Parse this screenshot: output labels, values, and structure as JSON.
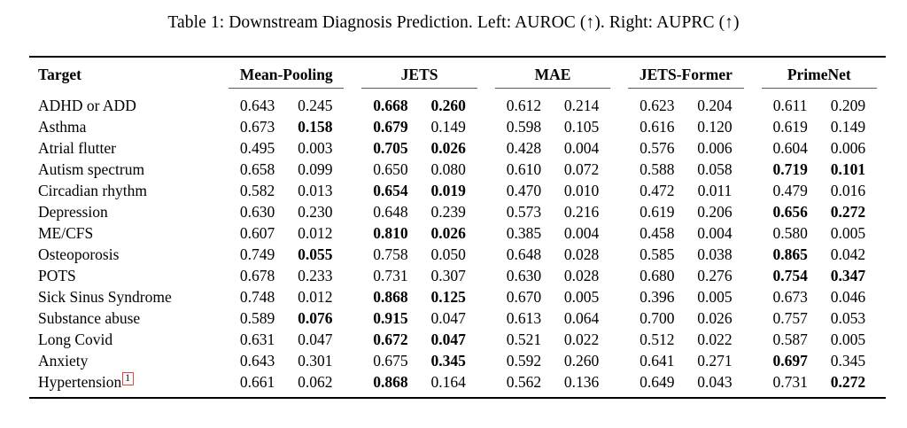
{
  "caption": "Table 1: Downstream Diagnosis Prediction. Left: AUROC (↑). Right: AUPRC (↑)",
  "accent_red": "#e6443f",
  "table": {
    "target_header": "Target",
    "method_headers": [
      "Mean-Pooling",
      "JETS",
      "MAE",
      "JETS-Former",
      "PrimeNet"
    ],
    "metric_note": "each method column pair shows AUROC then AUPRC",
    "rows": [
      {
        "target": "ADHD or ADD",
        "values": [
          "0.643",
          "0.245",
          "0.668",
          "0.260",
          "0.612",
          "0.214",
          "0.623",
          "0.204",
          "0.611",
          "0.209"
        ],
        "bold": [
          2,
          3
        ]
      },
      {
        "target": "Asthma",
        "values": [
          "0.673",
          "0.158",
          "0.679",
          "0.149",
          "0.598",
          "0.105",
          "0.616",
          "0.120",
          "0.619",
          "0.149"
        ],
        "bold": [
          1,
          2
        ]
      },
      {
        "target": "Atrial flutter",
        "values": [
          "0.495",
          "0.003",
          "0.705",
          "0.026",
          "0.428",
          "0.004",
          "0.576",
          "0.006",
          "0.604",
          "0.006"
        ],
        "bold": [
          2,
          3
        ]
      },
      {
        "target": "Autism spectrum",
        "values": [
          "0.658",
          "0.099",
          "0.650",
          "0.080",
          "0.610",
          "0.072",
          "0.588",
          "0.058",
          "0.719",
          "0.101"
        ],
        "bold": [
          8,
          9
        ]
      },
      {
        "target": "Circadian rhythm",
        "values": [
          "0.582",
          "0.013",
          "0.654",
          "0.019",
          "0.470",
          "0.010",
          "0.472",
          "0.011",
          "0.479",
          "0.016"
        ],
        "bold": [
          2,
          3
        ]
      },
      {
        "target": "Depression",
        "values": [
          "0.630",
          "0.230",
          "0.648",
          "0.239",
          "0.573",
          "0.216",
          "0.619",
          "0.206",
          "0.656",
          "0.272"
        ],
        "bold": [
          8,
          9
        ]
      },
      {
        "target": "ME/CFS",
        "values": [
          "0.607",
          "0.012",
          "0.810",
          "0.026",
          "0.385",
          "0.004",
          "0.458",
          "0.004",
          "0.580",
          "0.005"
        ],
        "bold": [
          2,
          3
        ]
      },
      {
        "target": "Osteoporosis",
        "values": [
          "0.749",
          "0.055",
          "0.758",
          "0.050",
          "0.648",
          "0.028",
          "0.585",
          "0.038",
          "0.865",
          "0.042"
        ],
        "bold": [
          1,
          8
        ]
      },
      {
        "target": "POTS",
        "values": [
          "0.678",
          "0.233",
          "0.731",
          "0.307",
          "0.630",
          "0.028",
          "0.680",
          "0.276",
          "0.754",
          "0.347"
        ],
        "bold": [
          8,
          9
        ]
      },
      {
        "target": "Sick Sinus Syndrome",
        "values": [
          "0.748",
          "0.012",
          "0.868",
          "0.125",
          "0.670",
          "0.005",
          "0.396",
          "0.005",
          "0.673",
          "0.046"
        ],
        "bold": [
          2,
          3
        ]
      },
      {
        "target": "Substance abuse",
        "values": [
          "0.589",
          "0.076",
          "0.915",
          "0.047",
          "0.613",
          "0.064",
          "0.700",
          "0.026",
          "0.757",
          "0.053"
        ],
        "bold": [
          1,
          2
        ]
      },
      {
        "target": "Long Covid",
        "values": [
          "0.631",
          "0.047",
          "0.672",
          "0.047",
          "0.521",
          "0.022",
          "0.512",
          "0.022",
          "0.587",
          "0.005"
        ],
        "bold": [
          2,
          3
        ]
      },
      {
        "target": "Anxiety",
        "values": [
          "0.643",
          "0.301",
          "0.675",
          "0.345",
          "0.592",
          "0.260",
          "0.641",
          "0.271",
          "0.697",
          "0.345"
        ],
        "bold": [
          3,
          8
        ]
      },
      {
        "target": "Hypertension",
        "footnote": "1",
        "values": [
          "0.661",
          "0.062",
          "0.868",
          "0.164",
          "0.562",
          "0.136",
          "0.649",
          "0.043",
          "0.731",
          "0.272"
        ],
        "bold": [
          2,
          9
        ]
      }
    ]
  }
}
